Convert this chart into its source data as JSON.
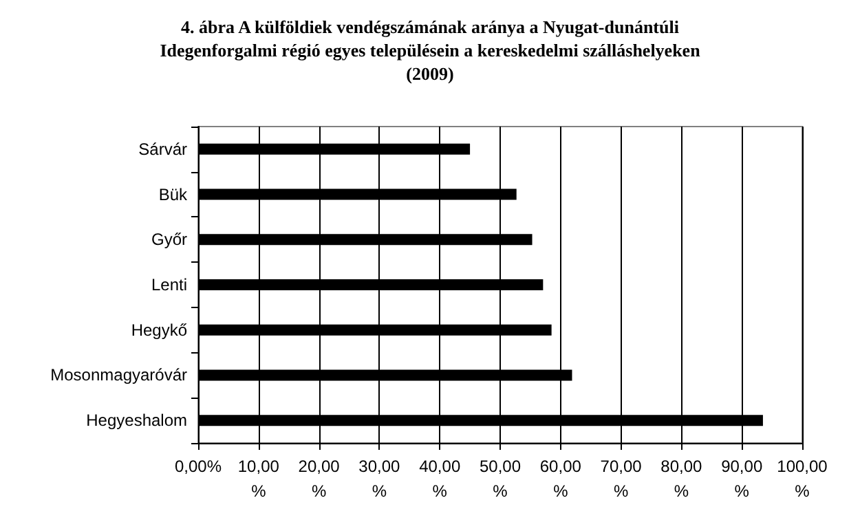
{
  "chart_data": {
    "type": "bar",
    "orientation": "horizontal",
    "title": "4. ábra A külföldiek vendégszámának aránya a Nyugat-dunántúli\nIdegenforgalmi régió egyes településein a kereskedelmi szálláshelyeken\n(2009)",
    "categories": [
      "Sárvár",
      "Bük",
      "Győr",
      "Lenti",
      "Hegykő",
      "Mosonmagyaróvár",
      "Hegyeshalom"
    ],
    "values": [
      45.0,
      52.7,
      55.3,
      57.1,
      58.5,
      61.9,
      93.5
    ],
    "color": "#000000",
    "xlim": [
      0,
      100
    ],
    "xticks": [
      {
        "value": 0,
        "label": "0,00%"
      },
      {
        "value": 10,
        "label": "10,00\n%"
      },
      {
        "value": 20,
        "label": "20,00\n%"
      },
      {
        "value": 30,
        "label": "30,00\n%"
      },
      {
        "value": 40,
        "label": "40,00\n%"
      },
      {
        "value": 50,
        "label": "50,00\n%"
      },
      {
        "value": 60,
        "label": "60,00\n%"
      },
      {
        "value": 70,
        "label": "70,00\n%"
      },
      {
        "value": 80,
        "label": "80,00\n%"
      },
      {
        "value": 90,
        "label": "90,00\n%"
      },
      {
        "value": 100,
        "label": "100,00\n%"
      }
    ],
    "grid": "x"
  }
}
